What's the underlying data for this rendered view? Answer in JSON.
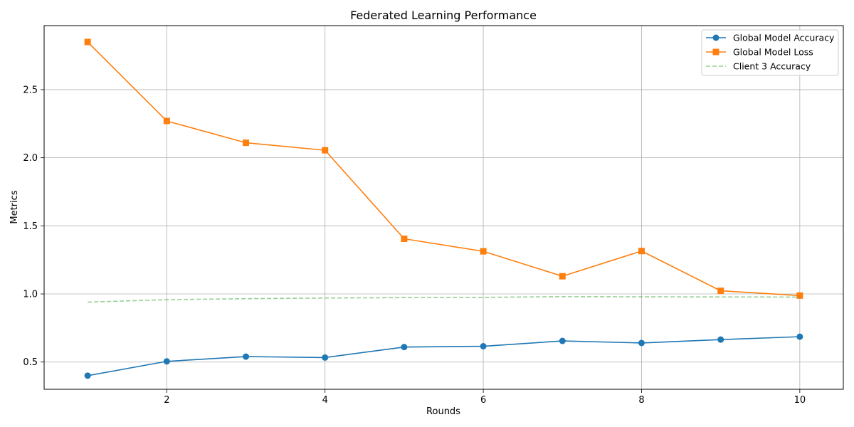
{
  "chart_data": {
    "type": "line",
    "title": "Federated Learning Performance",
    "xlabel": "Rounds",
    "ylabel": "Metrics",
    "x": [
      1,
      2,
      3,
      4,
      5,
      6,
      7,
      8,
      9,
      10
    ],
    "xlim": [
      0.45,
      10.55
    ],
    "ylim": [
      0.3,
      2.97
    ],
    "xticks": [
      2,
      4,
      6,
      8,
      10
    ],
    "yticks": [
      0.5,
      1.0,
      1.5,
      2.0,
      2.5
    ],
    "grid": true,
    "legend_position": "top-right",
    "series": [
      {
        "name": "Global Model Accuracy",
        "color": "#1f77b4",
        "marker": "circle",
        "linestyle": "solid",
        "values": [
          0.4,
          0.505,
          0.54,
          0.533,
          0.61,
          0.616,
          0.655,
          0.64,
          0.665,
          0.686
        ]
      },
      {
        "name": "Global Model Loss",
        "color": "#ff7f0e",
        "marker": "square",
        "linestyle": "solid",
        "values": [
          2.85,
          2.27,
          2.11,
          2.055,
          1.405,
          1.313,
          1.13,
          1.315,
          1.023,
          0.988
        ]
      },
      {
        "name": "Client 3 Accuracy",
        "color": "#2ca02c",
        "marker": "none",
        "linestyle": "dashed",
        "opacity": 0.5,
        "values": [
          0.94,
          0.958,
          0.965,
          0.97,
          0.973,
          0.975,
          0.98,
          0.979,
          0.978,
          0.977
        ]
      }
    ]
  }
}
